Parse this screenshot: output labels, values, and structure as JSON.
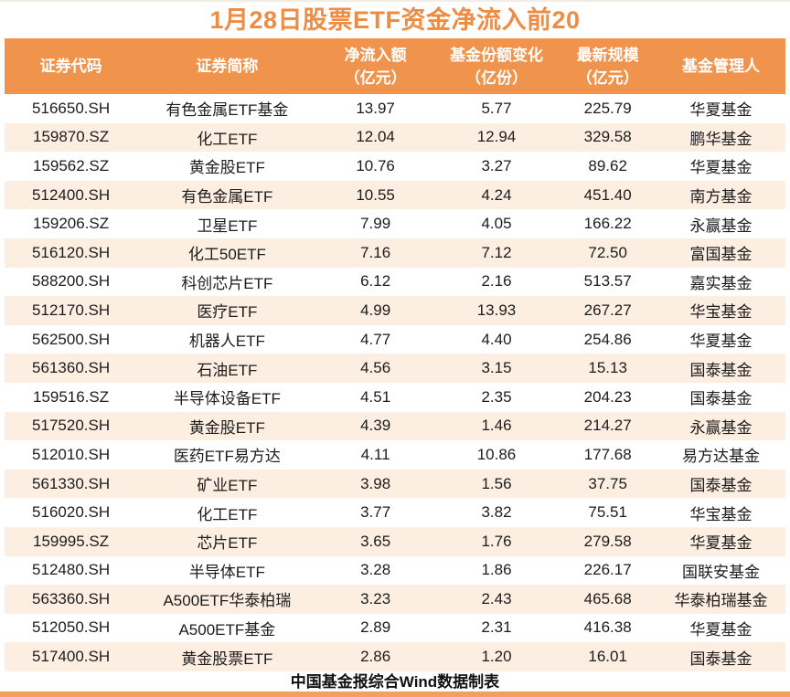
{
  "chart_data": {
    "type": "table",
    "title": "1月28日股票ETF资金净流入前20",
    "source_note": "中国基金报综合Wind数据制表",
    "columns": [
      {
        "label": "证券代码",
        "unit": ""
      },
      {
        "label": "证券简称",
        "unit": ""
      },
      {
        "label": "净流入额",
        "unit": "（亿元）"
      },
      {
        "label": "基金份额变化",
        "unit": "（亿份）"
      },
      {
        "label": "最新规模",
        "unit": "（亿元）"
      },
      {
        "label": "基金管理人",
        "unit": ""
      }
    ],
    "rows": [
      {
        "code": "516650.SH",
        "name": "有色金属ETF基金",
        "inflow": "13.97",
        "share_change": "5.77",
        "scale": "225.79",
        "manager": "华夏基金"
      },
      {
        "code": "159870.SZ",
        "name": "化工ETF",
        "inflow": "12.04",
        "share_change": "12.94",
        "scale": "329.58",
        "manager": "鹏华基金"
      },
      {
        "code": "159562.SZ",
        "name": "黄金股ETF",
        "inflow": "10.76",
        "share_change": "3.27",
        "scale": "89.62",
        "manager": "华夏基金"
      },
      {
        "code": "512400.SH",
        "name": "有色金属ETF",
        "inflow": "10.55",
        "share_change": "4.24",
        "scale": "451.40",
        "manager": "南方基金"
      },
      {
        "code": "159206.SZ",
        "name": "卫星ETF",
        "inflow": "7.99",
        "share_change": "4.05",
        "scale": "166.22",
        "manager": "永赢基金"
      },
      {
        "code": "516120.SH",
        "name": "化工50ETF",
        "inflow": "7.16",
        "share_change": "7.12",
        "scale": "72.50",
        "manager": "富国基金"
      },
      {
        "code": "588200.SH",
        "name": "科创芯片ETF",
        "inflow": "6.12",
        "share_change": "2.16",
        "scale": "513.57",
        "manager": "嘉实基金"
      },
      {
        "code": "512170.SH",
        "name": "医疗ETF",
        "inflow": "4.99",
        "share_change": "13.93",
        "scale": "267.27",
        "manager": "华宝基金"
      },
      {
        "code": "562500.SH",
        "name": "机器人ETF",
        "inflow": "4.77",
        "share_change": "4.40",
        "scale": "254.86",
        "manager": "华夏基金"
      },
      {
        "code": "561360.SH",
        "name": "石油ETF",
        "inflow": "4.56",
        "share_change": "3.15",
        "scale": "15.13",
        "manager": "国泰基金"
      },
      {
        "code": "159516.SZ",
        "name": "半导体设备ETF",
        "inflow": "4.51",
        "share_change": "2.35",
        "scale": "204.23",
        "manager": "国泰基金"
      },
      {
        "code": "517520.SH",
        "name": "黄金股ETF",
        "inflow": "4.39",
        "share_change": "1.46",
        "scale": "214.27",
        "manager": "永赢基金"
      },
      {
        "code": "512010.SH",
        "name": "医药ETF易方达",
        "inflow": "4.11",
        "share_change": "10.86",
        "scale": "177.68",
        "manager": "易方达基金"
      },
      {
        "code": "561330.SH",
        "name": "矿业ETF",
        "inflow": "3.98",
        "share_change": "1.56",
        "scale": "37.75",
        "manager": "国泰基金"
      },
      {
        "code": "516020.SH",
        "name": "化工ETF",
        "inflow": "3.77",
        "share_change": "3.82",
        "scale": "75.51",
        "manager": "华宝基金"
      },
      {
        "code": "159995.SZ",
        "name": "芯片ETF",
        "inflow": "3.65",
        "share_change": "1.76",
        "scale": "279.58",
        "manager": "华夏基金"
      },
      {
        "code": "512480.SH",
        "name": "半导体ETF",
        "inflow": "3.28",
        "share_change": "1.86",
        "scale": "226.17",
        "manager": "国联安基金"
      },
      {
        "code": "563360.SH",
        "name": "A500ETF华泰柏瑞",
        "inflow": "3.23",
        "share_change": "2.43",
        "scale": "465.68",
        "manager": "华泰柏瑞基金"
      },
      {
        "code": "512050.SH",
        "name": "A500ETF基金",
        "inflow": "2.89",
        "share_change": "2.31",
        "scale": "416.38",
        "manager": "华夏基金"
      },
      {
        "code": "517400.SH",
        "name": "黄金股票ETF",
        "inflow": "2.86",
        "share_change": "1.20",
        "scale": "16.01",
        "manager": "国泰基金"
      }
    ]
  },
  "colors": {
    "header_bg": "#F0944D",
    "title_text": "#EF8C44",
    "row_stripe": "#FDEEE2",
    "bottom_bar": "#F2A05C"
  }
}
